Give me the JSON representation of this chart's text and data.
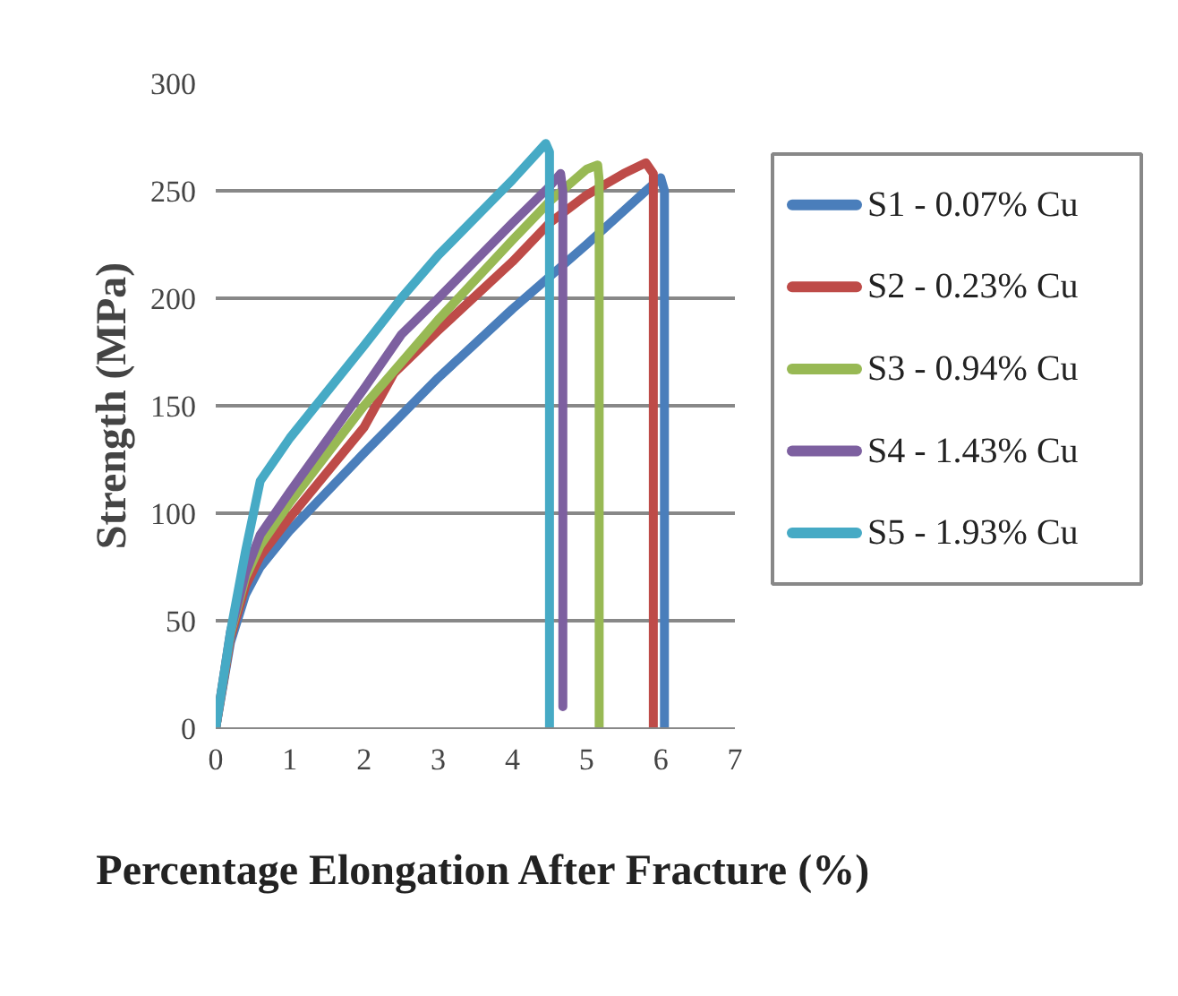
{
  "chart_data": {
    "type": "line",
    "xlabel": "Percentage Elongation After Fracture (%)",
    "ylabel": "Strength (MPa)",
    "xlim": [
      0,
      7
    ],
    "xticks": [
      0,
      1,
      2,
      3,
      4,
      5,
      6,
      7
    ],
    "ylim": [
      0,
      300
    ],
    "yticks": [
      0,
      50,
      100,
      150,
      200,
      250,
      300
    ],
    "grid": "y",
    "legend": "right",
    "line_style": "solid",
    "series": [
      {
        "name": "S1 - 0.07% Cu",
        "color": "#4a7ebb",
        "x": [
          0,
          0.2,
          0.4,
          0.6,
          1,
          2,
          3,
          4,
          5,
          5.8,
          6.0,
          6.05,
          6.05
        ],
        "values": [
          0,
          40,
          62,
          75,
          92,
          128,
          163,
          195,
          225,
          250,
          256,
          250,
          0
        ]
      },
      {
        "name": "S2 - 0.23% Cu",
        "color": "#be4b48",
        "x": [
          0,
          0.2,
          0.4,
          0.6,
          1,
          2,
          2.4,
          3,
          4,
          4.5,
          5,
          5.5,
          5.8,
          5.9,
          5.9
        ],
        "values": [
          0,
          42,
          66,
          80,
          98,
          140,
          165,
          185,
          217,
          235,
          248,
          258,
          263,
          258,
          0
        ]
      },
      {
        "name": "S3 - 0.94% Cu",
        "color": "#98b954",
        "x": [
          0,
          0.2,
          0.4,
          0.6,
          1,
          2,
          3,
          4,
          4.5,
          5,
          5.15,
          5.17,
          5.17
        ],
        "values": [
          0,
          44,
          70,
          85,
          105,
          150,
          190,
          227,
          245,
          260,
          262,
          255,
          0
        ]
      },
      {
        "name": "S4 - 1.43% Cu",
        "color": "#7d60a0",
        "x": [
          0,
          0.2,
          0.4,
          0.6,
          1,
          2,
          2.5,
          3,
          4,
          4.5,
          4.65,
          4.68,
          4.68
        ],
        "values": [
          0,
          45,
          72,
          90,
          110,
          158,
          183,
          200,
          235,
          252,
          258,
          250,
          10
        ]
      },
      {
        "name": "S5 - 1.93% Cu",
        "color": "#46aac5",
        "x": [
          0,
          0.2,
          0.4,
          0.6,
          1,
          2,
          2.5,
          3,
          4,
          4.45,
          4.5,
          4.5
        ],
        "values": [
          0,
          45,
          82,
          115,
          135,
          178,
          200,
          220,
          255,
          272,
          268,
          0
        ]
      }
    ]
  }
}
